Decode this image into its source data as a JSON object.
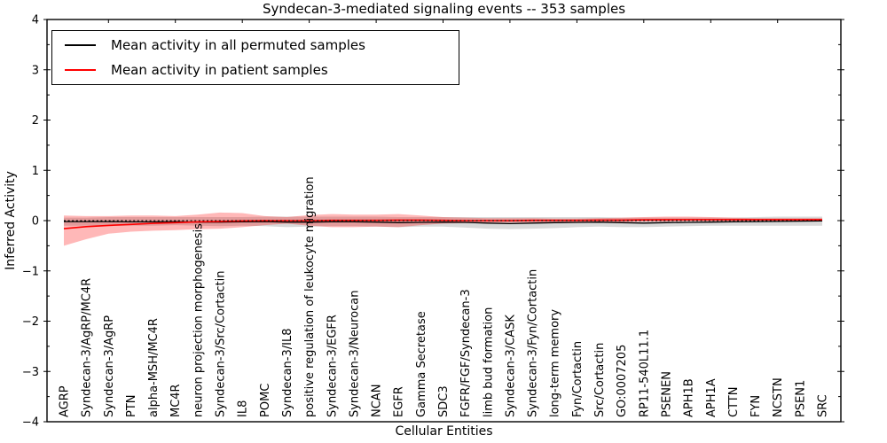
{
  "chart_data": {
    "type": "line",
    "title": "Syndecan-3-mediated signaling events -- 353 samples",
    "xlabel": "Cellular Entities",
    "ylabel": "Inferred Activity",
    "ylim": [
      -4,
      4
    ],
    "yticks": [
      -4,
      -3,
      -2,
      -1,
      0,
      1,
      2,
      3,
      4
    ],
    "grid": false,
    "legend_position": "upper left",
    "zero_line": true,
    "top_tick_indices": [
      2,
      5,
      8,
      11,
      14,
      17,
      20,
      23,
      26,
      29,
      32
    ],
    "categories": [
      "AGRP",
      "Syndecan-3/AgRP/MC4R",
      "Syndecan-3/AgRP",
      "PTN",
      "alpha-MSH/MC4R",
      "MC4R",
      "neuron projection morphogenesis",
      "Syndecan-3/Src/Cortactin",
      "IL8",
      "POMC",
      "Syndecan-3/IL8",
      "positive regulation of leukocyte migration",
      "Syndecan-3/EGFR",
      "Syndecan-3/Neurocan",
      "NCAN",
      "EGFR",
      "Gamma Secretase",
      "SDC3",
      "FGFR/FGF/Syndecan-3",
      "limb bud formation",
      "Syndecan-3/CASK",
      "Syndecan-3/Fyn/Cortactin",
      "long-term memory",
      "Fyn/Cortactin",
      "Src/Cortactin",
      "GO:0007205",
      "RP11-540L11.1",
      "PSENEN",
      "APH1B",
      "APH1A",
      "CTTN",
      "FYN",
      "NCSTN",
      "PSEN1",
      "SRC"
    ],
    "series": [
      {
        "name": "Mean activity in all permuted samples",
        "color": "#000000",
        "band_color": "rgba(0,0,0,0.15)",
        "values": [
          -0.02,
          -0.02,
          -0.02,
          -0.025,
          -0.025,
          -0.02,
          -0.03,
          -0.03,
          -0.025,
          -0.02,
          -0.03,
          -0.03,
          -0.025,
          -0.025,
          -0.03,
          -0.04,
          -0.035,
          -0.03,
          -0.035,
          -0.05,
          -0.06,
          -0.05,
          -0.04,
          -0.035,
          -0.03,
          -0.04,
          -0.05,
          -0.04,
          -0.035,
          -0.03,
          -0.025,
          -0.02,
          -0.015,
          -0.01,
          -0.005
        ],
        "band_lower": [
          -0.1,
          -0.1,
          -0.1,
          -0.1,
          -0.1,
          -0.09,
          -0.1,
          -0.11,
          -0.1,
          -0.11,
          -0.13,
          -0.12,
          -0.11,
          -0.11,
          -0.12,
          -0.13,
          -0.12,
          -0.12,
          -0.14,
          -0.16,
          -0.17,
          -0.16,
          -0.15,
          -0.13,
          -0.12,
          -0.13,
          -0.13,
          -0.12,
          -0.11,
          -0.1,
          -0.1,
          -0.1,
          -0.1,
          -0.1,
          -0.1
        ],
        "band_upper": [
          0.06,
          0.06,
          0.07,
          0.07,
          0.07,
          0.07,
          0.07,
          0.07,
          0.07,
          0.08,
          0.08,
          0.08,
          0.08,
          0.08,
          0.08,
          0.07,
          0.07,
          0.07,
          0.07,
          0.07,
          0.07,
          0.07,
          0.07,
          0.07,
          0.07,
          0.06,
          0.06,
          0.06,
          0.06,
          0.06,
          0.06,
          0.07,
          0.08,
          0.08,
          0.08
        ]
      },
      {
        "name": "Mean activity in patient samples",
        "color": "#ff0000",
        "band_color": "rgba(255,0,0,0.28)",
        "values": [
          -0.16,
          -0.12,
          -0.095,
          -0.075,
          -0.055,
          -0.04,
          -0.025,
          -0.015,
          -0.005,
          0,
          0,
          0,
          0.005,
          0.005,
          0.005,
          0.01,
          0.01,
          0.005,
          0,
          0,
          0,
          0.005,
          0.005,
          0.005,
          0.01,
          0.01,
          0.015,
          0.02,
          0.02,
          0.02,
          0.02,
          0.02,
          0.02,
          0.02,
          0.02
        ],
        "band_lower": [
          -0.5,
          -0.37,
          -0.26,
          -0.22,
          -0.2,
          -0.19,
          -0.17,
          -0.16,
          -0.13,
          -0.09,
          -0.06,
          -0.1,
          -0.13,
          -0.13,
          -0.12,
          -0.13,
          -0.09,
          -0.06,
          -0.05,
          -0.04,
          -0.04,
          -0.04,
          -0.03,
          -0.03,
          -0.03,
          -0.03,
          -0.02,
          -0.02,
          -0.01,
          -0.01,
          -0.01,
          0,
          0,
          0,
          0
        ],
        "band_upper": [
          0.1,
          0.09,
          0.09,
          0.1,
          0.1,
          0.09,
          0.12,
          0.16,
          0.15,
          0.09,
          0.07,
          0.11,
          0.13,
          0.12,
          0.12,
          0.13,
          0.1,
          0.07,
          0.06,
          0.05,
          0.05,
          0.05,
          0.04,
          0.04,
          0.05,
          0.06,
          0.07,
          0.08,
          0.08,
          0.07,
          0.06,
          0.05,
          0.05,
          0.05,
          0.05
        ]
      }
    ]
  }
}
